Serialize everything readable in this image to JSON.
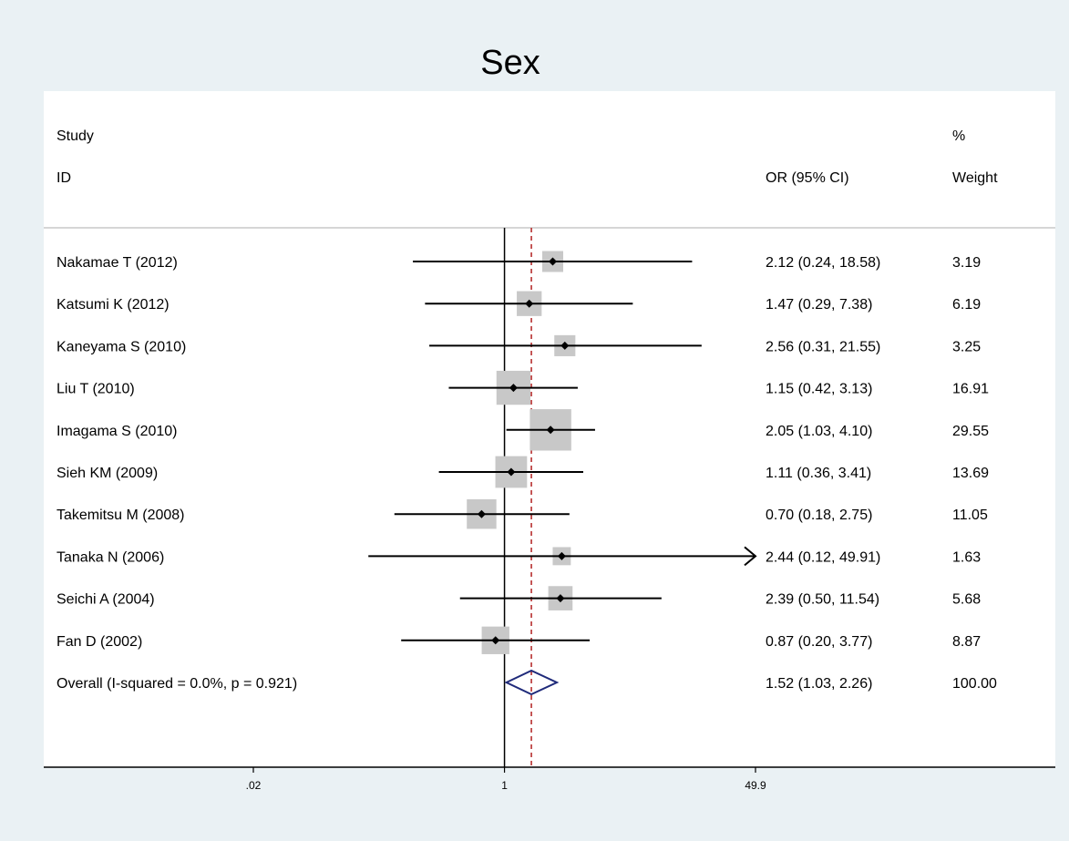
{
  "chart_data": {
    "type": "forest",
    "title": "Sex",
    "scale": "log",
    "xlim": [
      0.02,
      49.9
    ],
    "null_line": 1,
    "xticks": [
      {
        "value": 0.02,
        "label": ".02"
      },
      {
        "value": 1,
        "label": "1"
      },
      {
        "value": 49.9,
        "label": "49.9"
      }
    ],
    "headers": {
      "study_line1": "Study",
      "study_line2": "ID",
      "effect": "OR (95% CI)",
      "weight_line1": "%",
      "weight_line2": "Weight"
    },
    "studies": [
      {
        "id": "Nakamae T (2012)",
        "or": 2.12,
        "lower": 0.24,
        "upper": 18.58,
        "ci_text": "2.12 (0.24, 18.58)",
        "weight": 3.19,
        "weight_text": "3.19"
      },
      {
        "id": "Katsumi K (2012)",
        "or": 1.47,
        "lower": 0.29,
        "upper": 7.38,
        "ci_text": "1.47 (0.29, 7.38)",
        "weight": 6.19,
        "weight_text": "6.19"
      },
      {
        "id": "Kaneyama S (2010)",
        "or": 2.56,
        "lower": 0.31,
        "upper": 21.55,
        "ci_text": "2.56 (0.31, 21.55)",
        "weight": 3.25,
        "weight_text": "3.25"
      },
      {
        "id": "Liu T (2010)",
        "or": 1.15,
        "lower": 0.42,
        "upper": 3.13,
        "ci_text": "1.15 (0.42, 3.13)",
        "weight": 16.91,
        "weight_text": "16.91"
      },
      {
        "id": "Imagama S (2010)",
        "or": 2.05,
        "lower": 1.03,
        "upper": 4.1,
        "ci_text": "2.05 (1.03, 4.10)",
        "weight": 29.55,
        "weight_text": "29.55"
      },
      {
        "id": "Sieh KM (2009)",
        "or": 1.11,
        "lower": 0.36,
        "upper": 3.41,
        "ci_text": "1.11 (0.36, 3.41)",
        "weight": 13.69,
        "weight_text": "13.69"
      },
      {
        "id": "Takemitsu M (2008)",
        "or": 0.7,
        "lower": 0.18,
        "upper": 2.75,
        "ci_text": "0.70 (0.18, 2.75)",
        "weight": 11.05,
        "weight_text": "11.05"
      },
      {
        "id": "Tanaka N (2006)",
        "or": 2.44,
        "lower": 0.12,
        "upper": 49.91,
        "ci_text": "2.44 (0.12, 49.91)",
        "weight": 1.63,
        "weight_text": "1.63"
      },
      {
        "id": "Seichi A (2004)",
        "or": 2.39,
        "lower": 0.5,
        "upper": 11.54,
        "ci_text": "2.39 (0.50, 11.54)",
        "weight": 5.68,
        "weight_text": "5.68"
      },
      {
        "id": "Fan D (2002)",
        "or": 0.87,
        "lower": 0.2,
        "upper": 3.77,
        "ci_text": "0.87 (0.20, 3.77)",
        "weight": 8.87,
        "weight_text": "8.87"
      }
    ],
    "overall": {
      "label": "Overall  (I-squared = 0.0%, p = 0.921)",
      "or": 1.52,
      "lower": 1.03,
      "upper": 2.26,
      "ci_text": "1.52 (1.03, 2.26)",
      "weight_text": "100.00"
    },
    "colors": {
      "ci_line": "#000000",
      "weight_box": "#c8c8c8",
      "null_line": "#000000",
      "overall_line": "#b22222",
      "diamond": "#1f2a7a"
    }
  }
}
